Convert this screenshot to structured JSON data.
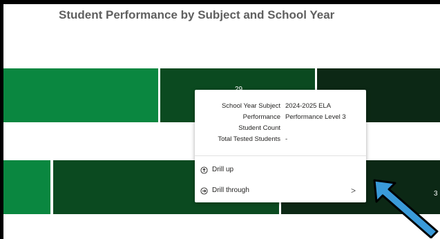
{
  "chart": {
    "title": "Student Performance by Subject and School Year",
    "row1_label": "29",
    "row2_label": "3",
    "colors": {
      "light_green": "#0a8740",
      "dark_green": "#0b4a20",
      "darkest_green": "#0c2815"
    }
  },
  "tooltip": {
    "rows": [
      {
        "key": "School Year Subject",
        "value": "2024-2025 ELA"
      },
      {
        "key": "Performance",
        "value": "Performance Level 3"
      },
      {
        "key": "Student Count",
        "value": ""
      },
      {
        "key": "Total Tested Students",
        "value": "-"
      }
    ],
    "menu": [
      {
        "label": "Drill up",
        "icon": "drill-up-icon",
        "glyph": "↑"
      },
      {
        "label": "Drill through",
        "icon": "drill-through-icon",
        "glyph": "→",
        "chevron": ">"
      }
    ]
  },
  "annotation": {
    "arrow_color": "#3a9ad9",
    "arrow_outline": "#000000"
  }
}
